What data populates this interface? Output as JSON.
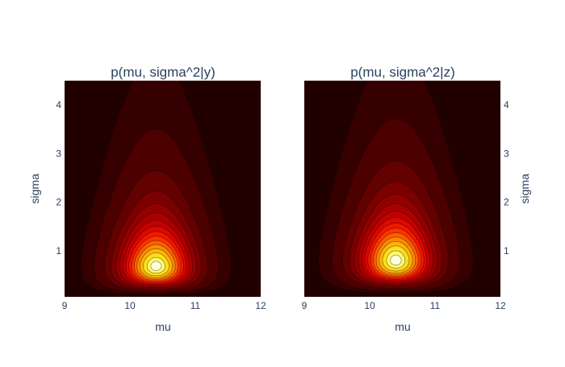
{
  "chart_data": [
    {
      "type": "contour",
      "title": "p(mu, sigma^2|y)",
      "xlabel": "mu",
      "ylabel": "sigma",
      "xlim": [
        9,
        12
      ],
      "ylim": [
        0.05,
        4.5
      ],
      "xticks": [
        9,
        10,
        11,
        12
      ],
      "yticks": [
        1,
        2,
        3,
        4
      ],
      "yaxis_side": "left",
      "mode": {
        "mu": 10.4,
        "sigma": 0.68
      },
      "spread": {
        "mu": 0.36,
        "sigma_log": 0.62
      },
      "colorscale": "hot",
      "legend": "none",
      "grid": false
    },
    {
      "type": "contour",
      "title": "p(mu, sigma^2|z)",
      "xlabel": "mu",
      "ylabel": "sigma",
      "xlim": [
        9,
        12
      ],
      "ylim": [
        0.05,
        4.5
      ],
      "xticks": [
        9,
        10,
        11,
        12
      ],
      "yticks": [
        1,
        2,
        3,
        4
      ],
      "yaxis_side": "right",
      "mode": {
        "mu": 10.4,
        "sigma": 0.8
      },
      "spread": {
        "mu": 0.37,
        "sigma_log": 0.58
      },
      "colorscale": "hot",
      "legend": "none",
      "grid": false
    }
  ]
}
